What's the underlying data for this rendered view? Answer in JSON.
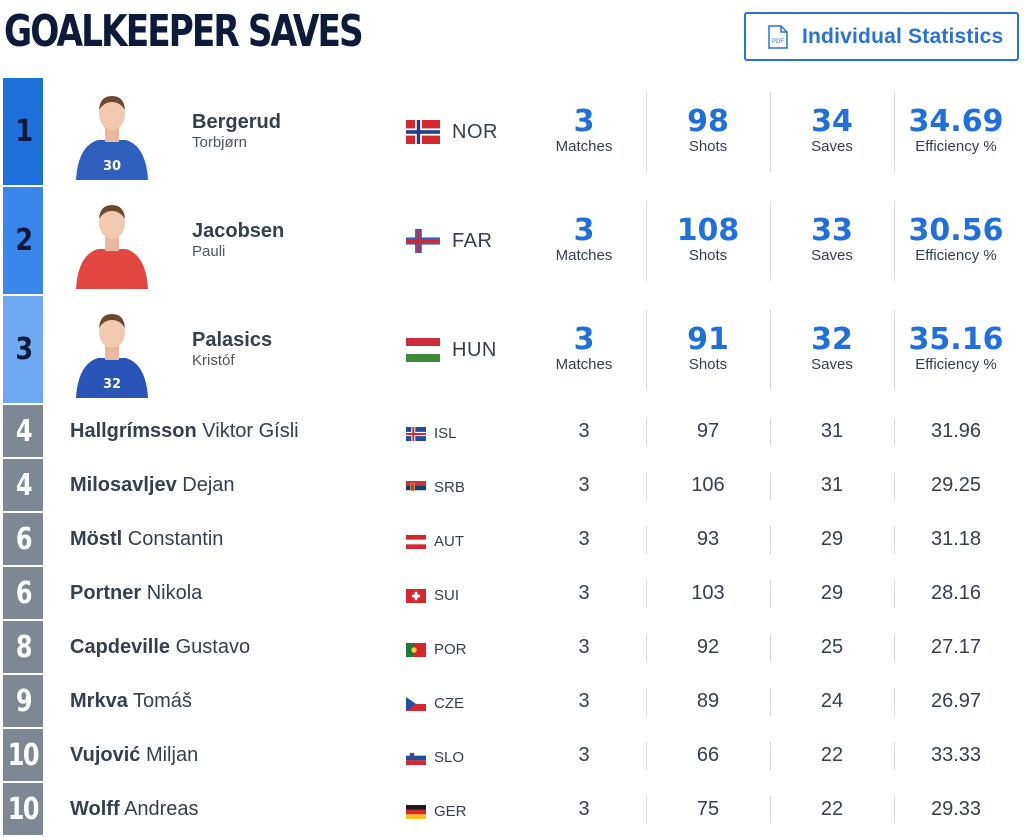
{
  "header": {
    "title": "GOALKEEPER SAVES",
    "pdf_icon_text": "PDF",
    "stats_button_label": "Individual Statistics"
  },
  "colors": {
    "rank1": "#1f6fdc",
    "rank2": "#3b86ea",
    "rank3": "#6fa9f2",
    "accent": "#1f6fdc",
    "rank_other": "#7e8794"
  },
  "stat_labels": {
    "matches": "Matches",
    "shots": "Shots",
    "saves": "Saves",
    "efficiency": "Efficiency %"
  },
  "top_players": [
    {
      "rank": "1",
      "last": "Bergerud",
      "first": "Torbjørn",
      "nation": "NOR",
      "jersey": "30",
      "shirt_color": "#2f5fbf",
      "matches": "3",
      "shots": "98",
      "saves": "34",
      "efficiency": "34.69"
    },
    {
      "rank": "2",
      "last": "Jacobsen",
      "first": "Pauli",
      "nation": "FAR",
      "jersey": "",
      "shirt_color": "#e24640",
      "matches": "3",
      "shots": "108",
      "saves": "33",
      "efficiency": "30.56"
    },
    {
      "rank": "3",
      "last": "Palasics",
      "first": "Kristóf",
      "nation": "HUN",
      "jersey": "32",
      "shirt_color": "#2a55b8",
      "matches": "3",
      "shots": "91",
      "saves": "32",
      "efficiency": "35.16"
    }
  ],
  "players": [
    {
      "rank": "4",
      "last": "Hallgrímsson",
      "first": "Viktor Gísli",
      "nation": "ISL",
      "matches": "3",
      "shots": "97",
      "saves": "31",
      "efficiency": "31.96"
    },
    {
      "rank": "4",
      "last": "Milosavljev",
      "first": "Dejan",
      "nation": "SRB",
      "matches": "3",
      "shots": "106",
      "saves": "31",
      "efficiency": "29.25"
    },
    {
      "rank": "6",
      "last": "Möstl",
      "first": "Constantin",
      "nation": "AUT",
      "matches": "3",
      "shots": "93",
      "saves": "29",
      "efficiency": "31.18"
    },
    {
      "rank": "6",
      "last": "Portner",
      "first": "Nikola",
      "nation": "SUI",
      "matches": "3",
      "shots": "103",
      "saves": "29",
      "efficiency": "28.16"
    },
    {
      "rank": "8",
      "last": "Capdeville",
      "first": "Gustavo",
      "nation": "POR",
      "matches": "3",
      "shots": "92",
      "saves": "25",
      "efficiency": "27.17"
    },
    {
      "rank": "9",
      "last": "Mrkva",
      "first": "Tomáš",
      "nation": "CZE",
      "matches": "3",
      "shots": "89",
      "saves": "24",
      "efficiency": "26.97"
    },
    {
      "rank": "10",
      "last": "Vujović",
      "first": "Miljan",
      "nation": "SLO",
      "matches": "3",
      "shots": "66",
      "saves": "22",
      "efficiency": "33.33"
    },
    {
      "rank": "10",
      "last": "Wolff",
      "first": "Andreas",
      "nation": "GER",
      "matches": "3",
      "shots": "75",
      "saves": "22",
      "efficiency": "29.33"
    }
  ]
}
